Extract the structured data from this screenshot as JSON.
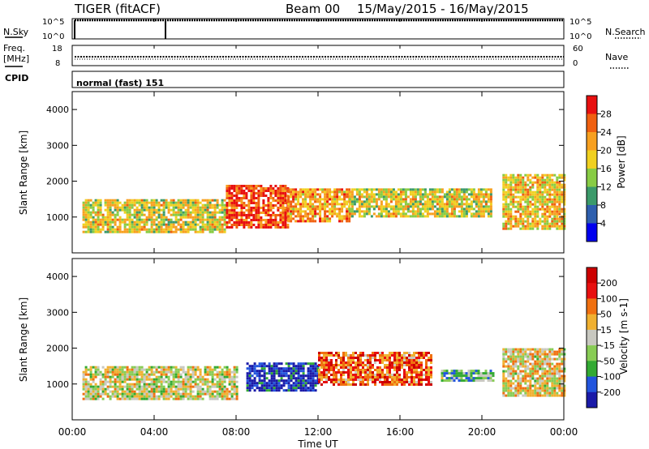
{
  "header": {
    "radar": "TIGER (fitACF)",
    "beam": "Beam 00",
    "date_range": "15/May/2015 - 16/May/2015"
  },
  "status_panels": {
    "nsky_label": "N.Sky",
    "nsearch_label": "N.Search",
    "freq_label_1": "Freq.",
    "freq_label_2": "[MHz]",
    "nave_label": "Nave",
    "cpid_label": "CPID",
    "cpid_text": "normal (fast) 151",
    "noise_ticks": [
      "10^5",
      "10^0"
    ],
    "freq_ticks": [
      "18",
      "8"
    ],
    "nave_ticks": [
      "60",
      "0"
    ]
  },
  "chart_data": [
    {
      "type": "heatmap",
      "name": "power",
      "ylabel": "Slant Range [km]",
      "xlabel": "",
      "yticks": [
        "1000",
        "2000",
        "3000",
        "4000"
      ],
      "ylim": [
        0,
        4500
      ],
      "colorbar": {
        "label": "Power [dB]",
        "ticks": [
          "4",
          "8",
          "12",
          "16",
          "20",
          "24",
          "28"
        ],
        "colors": [
          "#0000ee",
          "#2e5fae",
          "#3b9a6a",
          "#88cc44",
          "#f0d020",
          "#f7a020",
          "#f06010",
          "#e81010"
        ]
      },
      "bands": [
        {
          "t0": 0.5,
          "t1": 7.5,
          "r0": 600,
          "r1": 1500,
          "level": 0.55
        },
        {
          "t0": 7.5,
          "t1": 10.5,
          "r0": 700,
          "r1": 1900,
          "level": 0.85
        },
        {
          "t0": 10.5,
          "t1": 13.5,
          "r0": 900,
          "r1": 1800,
          "level": 0.7
        },
        {
          "t0": 13.5,
          "t1": 20.5,
          "r0": 1000,
          "r1": 1800,
          "level": 0.55
        },
        {
          "t0": 21.0,
          "t1": 24.0,
          "r0": 700,
          "r1": 2200,
          "level": 0.6
        }
      ]
    },
    {
      "type": "heatmap",
      "name": "velocity",
      "ylabel": "Slant Range [km]",
      "xlabel": "Time UT",
      "yticks": [
        "1000",
        "2000",
        "3000",
        "4000"
      ],
      "ylim": [
        0,
        4500
      ],
      "xticks": [
        "00:00",
        "04:00",
        "08:00",
        "12:00",
        "16:00",
        "20:00",
        "00:00"
      ],
      "xlim": [
        0,
        24
      ],
      "colorbar": {
        "label": "Velocity [m s-1]",
        "ticks": [
          "200",
          "100",
          "50",
          "15",
          "-15",
          "-50",
          "-100",
          "-200"
        ],
        "colors": [
          "#1a1aa8",
          "#2255dd",
          "#33aa33",
          "#88cc55",
          "#c8c8c0",
          "#f0b030",
          "#f07010",
          "#e81010",
          "#cc0000"
        ]
      },
      "bands": [
        {
          "t0": 0.5,
          "t1": 8.0,
          "r0": 600,
          "r1": 1500,
          "level": 0.5
        },
        {
          "t0": 8.5,
          "t1": 12.0,
          "r0": 800,
          "r1": 1600,
          "level": 0.05
        },
        {
          "t0": 12.0,
          "t1": 17.5,
          "r0": 1000,
          "r1": 1900,
          "level": 0.75
        },
        {
          "t0": 18.0,
          "t1": 20.5,
          "r0": 1100,
          "r1": 1400,
          "level": 0.35
        },
        {
          "t0": 21.0,
          "t1": 24.0,
          "r0": 700,
          "r1": 2000,
          "level": 0.55
        }
      ]
    }
  ]
}
